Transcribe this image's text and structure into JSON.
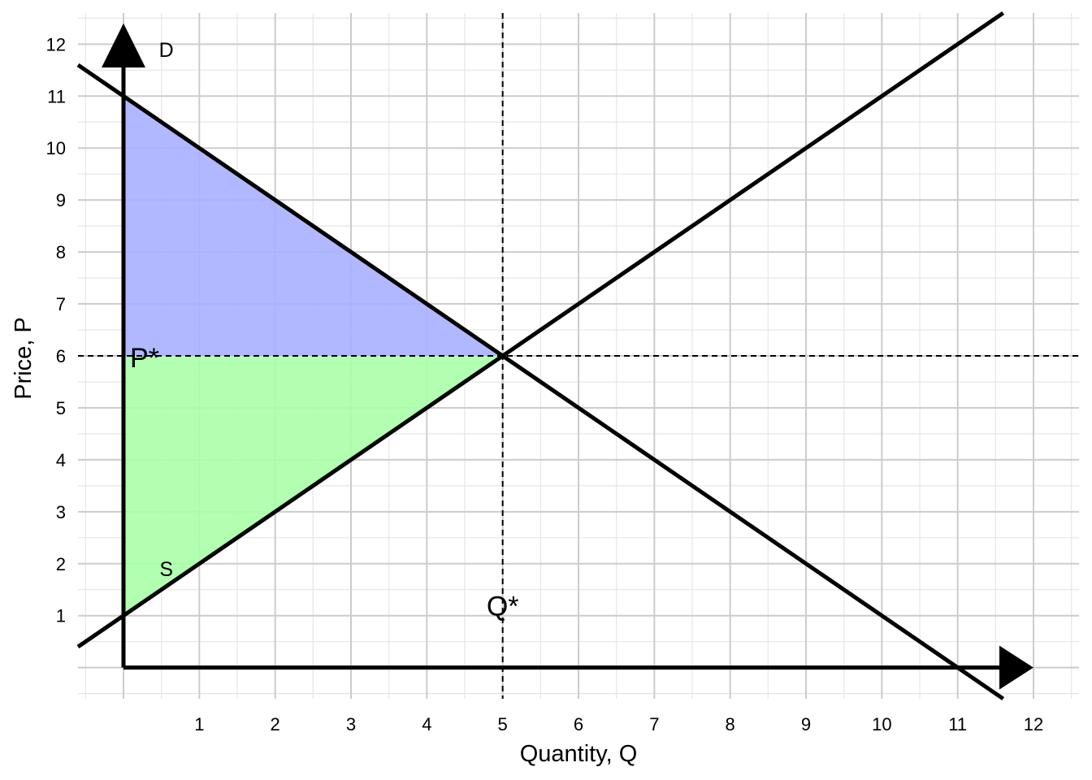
{
  "chart_data": {
    "type": "line",
    "title": "",
    "xlabel": "Quantity, Q",
    "ylabel": "Price, P",
    "xlim": [
      -0.6,
      12.6
    ],
    "ylim": [
      -0.6,
      12.6
    ],
    "x_ticks": [
      1,
      2,
      3,
      4,
      5,
      6,
      7,
      8,
      9,
      10,
      11,
      12
    ],
    "y_ticks": [
      1,
      2,
      3,
      4,
      5,
      6,
      7,
      8,
      9,
      10,
      11,
      12
    ],
    "grid": true,
    "series": [
      {
        "name": "D",
        "label_at": [
          0.5,
          11.9
        ],
        "x": [
          -0.6,
          11.6
        ],
        "y": [
          11.6,
          -0.6
        ],
        "color": "#000000"
      },
      {
        "name": "S",
        "label_at": [
          0.5,
          1.9
        ],
        "x": [
          -0.6,
          11.6
        ],
        "y": [
          0.4,
          12.6
        ],
        "color": "#000000"
      }
    ],
    "equilibrium": {
      "q": 5,
      "p": 6,
      "q_label": "Q*",
      "p_label": "P*"
    },
    "consumer_surplus": {
      "polygon": [
        [
          0,
          11
        ],
        [
          5,
          6
        ],
        [
          0,
          6
        ]
      ],
      "color": "#aab0ff"
    },
    "producer_surplus": {
      "polygon": [
        [
          0,
          1
        ],
        [
          5,
          6
        ],
        [
          0,
          6
        ]
      ],
      "color": "#aaffaa"
    }
  }
}
